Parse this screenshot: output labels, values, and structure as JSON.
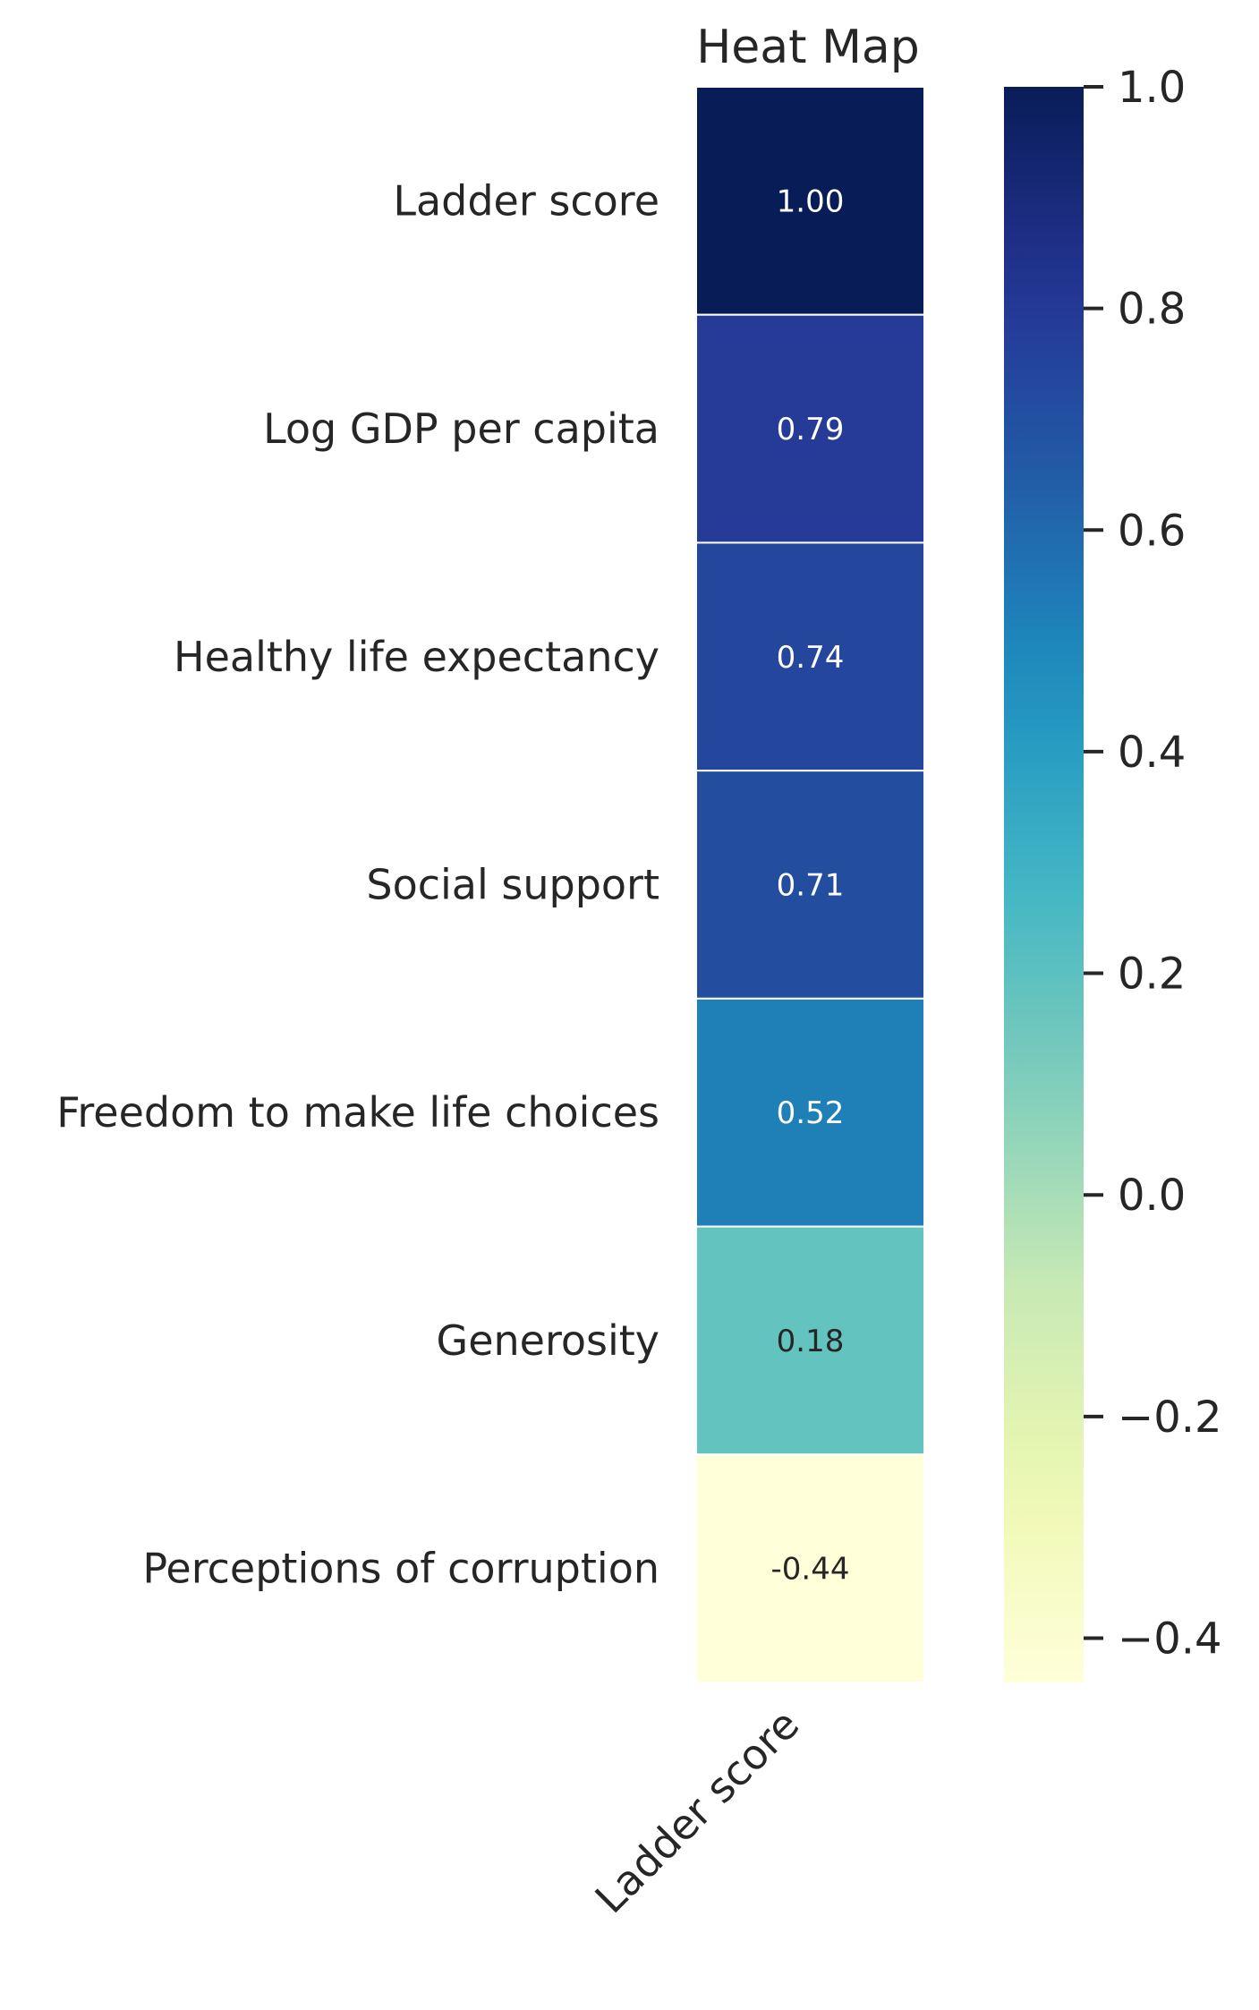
{
  "chart_data": {
    "type": "heatmap",
    "title": "Heat Map",
    "columns": [
      "Ladder score"
    ],
    "rows": [
      "Ladder score",
      "Log GDP per capita",
      "Healthy life expectancy",
      "Social support",
      "Freedom to make life choices",
      "Generosity",
      "Perceptions of corruption"
    ],
    "values": [
      1.0,
      0.79,
      0.74,
      0.71,
      0.52,
      0.18,
      -0.44
    ],
    "value_labels": [
      "1.00",
      "0.79",
      "0.74",
      "0.71",
      "0.52",
      "0.18",
      "-0.44"
    ],
    "colorbar": {
      "colormap": "YlGnBu",
      "vmin": -0.44,
      "vmax": 1.0,
      "ticks": [
        1.0,
        0.8,
        0.6,
        0.4,
        0.2,
        0.0,
        -0.2,
        -0.4
      ],
      "tick_labels": [
        "1.0",
        "0.8",
        "0.6",
        "0.4",
        "0.2",
        "0.0",
        "−0.2",
        "−0.4"
      ]
    },
    "cell_border_color": "#ffffff",
    "grid": false
  }
}
